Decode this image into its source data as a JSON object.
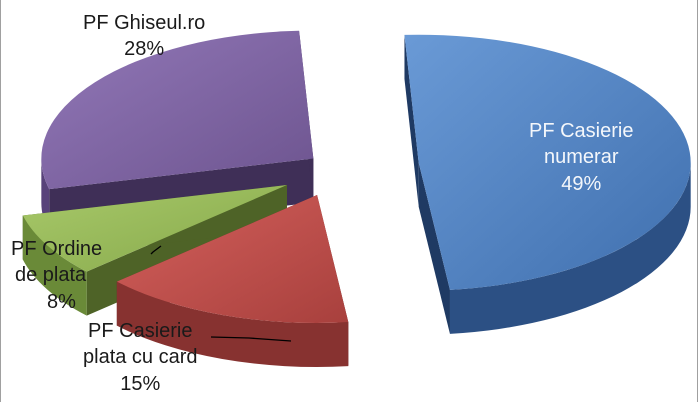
{
  "chart_data": {
    "type": "pie",
    "three_d": true,
    "exploded": true,
    "legend": "none",
    "slices": [
      {
        "label_lines": [
          "PF Casierie",
          "numerar"
        ],
        "percent_label": "49%",
        "value": 49,
        "color": "#4f81bd"
      },
      {
        "label_lines": [
          "PF Casierie",
          "plata cu card"
        ],
        "percent_label": "15%",
        "value": 15,
        "color": "#c0504d"
      },
      {
        "label_lines": [
          "PF Ordine",
          "de plata"
        ],
        "percent_label": "8%",
        "value": 8,
        "color": "#9bbb59"
      },
      {
        "label_lines": [
          "PF Ghiseul.ro"
        ],
        "percent_label": "28%",
        "value": 28,
        "color": "#8064a2"
      }
    ]
  }
}
